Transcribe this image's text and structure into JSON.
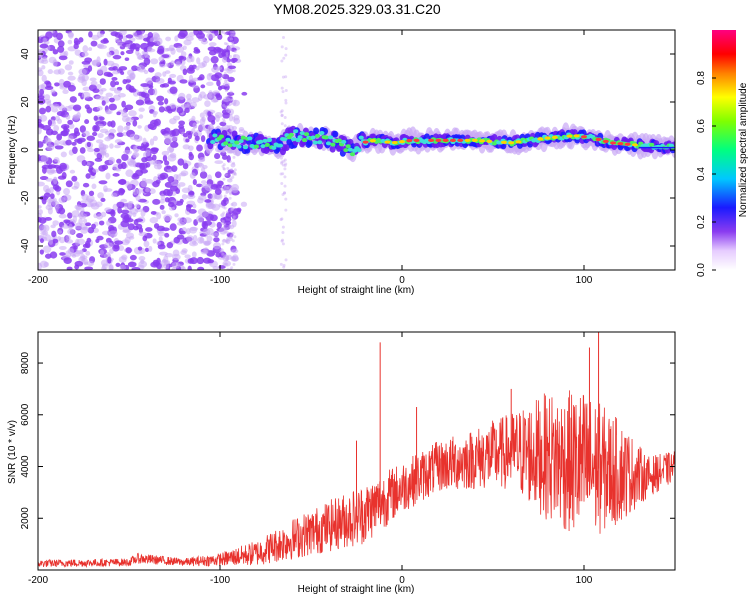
{
  "title": "YM08.2025.329.03.31.C20",
  "colors": {
    "snr_line": "#e8322d",
    "scatter_low": "#8a3cf0",
    "scatter_faint": "#c9a8f5",
    "band_center": "#3fe0d8",
    "band_core": "#ff3b3b"
  },
  "chart_data": [
    {
      "id": "spectrogram",
      "type": "heatmap",
      "title": "",
      "xlabel": "Height of straight line (km)",
      "ylabel": "Frequency (Hz)",
      "xlim": [
        -200,
        150
      ],
      "ylim": [
        -50,
        50
      ],
      "xticks": [
        -200,
        -100,
        0,
        100
      ],
      "yticks": [
        -40,
        -20,
        0,
        20,
        40
      ],
      "colorbar": {
        "label": "Normalized spectral amplitude",
        "range": [
          0,
          1
        ],
        "ticks": [
          0.0,
          0.2,
          0.4,
          0.6,
          0.8
        ]
      },
      "band_center_hz": [
        {
          "x": -105,
          "f": 5
        },
        {
          "x": -95,
          "f": 4
        },
        {
          "x": -85,
          "f": 3
        },
        {
          "x": -75,
          "f": 2
        },
        {
          "x": -68,
          "f": 1
        },
        {
          "x": -62,
          "f": 5
        },
        {
          "x": -55,
          "f": 6
        },
        {
          "x": -45,
          "f": 5
        },
        {
          "x": -35,
          "f": 3
        },
        {
          "x": -28,
          "f": 0
        },
        {
          "x": -22,
          "f": 3
        },
        {
          "x": -15,
          "f": 4
        },
        {
          "x": -5,
          "f": 3
        },
        {
          "x": 5,
          "f": 4
        },
        {
          "x": 20,
          "f": 4
        },
        {
          "x": 40,
          "f": 4
        },
        {
          "x": 60,
          "f": 3
        },
        {
          "x": 80,
          "f": 5
        },
        {
          "x": 95,
          "f": 6
        },
        {
          "x": 105,
          "f": 5
        },
        {
          "x": 115,
          "f": 3
        },
        {
          "x": 130,
          "f": 2
        },
        {
          "x": 150,
          "f": 1
        }
      ],
      "noise_region_km": [
        -200,
        -90
      ]
    },
    {
      "id": "snr",
      "type": "line",
      "title": "",
      "xlabel": "Height of straight line (km)",
      "ylabel": "SNR (10 * v/v)",
      "xlim": [
        -200,
        150
      ],
      "ylim": [
        0,
        9200
      ],
      "xticks": [
        -200,
        -100,
        0,
        100
      ],
      "yticks": [
        2000,
        4000,
        6000,
        8000
      ],
      "series": [
        {
          "name": "SNR",
          "envelope": [
            {
              "x": -200,
              "mean": 250,
              "spread": 150
            },
            {
              "x": -150,
              "mean": 300,
              "spread": 150
            },
            {
              "x": -145,
              "mean": 450,
              "spread": 200
            },
            {
              "x": -120,
              "mean": 300,
              "spread": 150
            },
            {
              "x": -100,
              "mean": 400,
              "spread": 250
            },
            {
              "x": -80,
              "mean": 650,
              "spread": 500
            },
            {
              "x": -60,
              "mean": 1200,
              "spread": 800
            },
            {
              "x": -40,
              "mean": 1700,
              "spread": 1000
            },
            {
              "x": -20,
              "mean": 2200,
              "spread": 1200
            },
            {
              "x": 0,
              "mean": 3200,
              "spread": 1000
            },
            {
              "x": 20,
              "mean": 4000,
              "spread": 1000
            },
            {
              "x": 40,
              "mean": 4300,
              "spread": 1200
            },
            {
              "x": 60,
              "mean": 4600,
              "spread": 1500
            },
            {
              "x": 80,
              "mean": 4400,
              "spread": 2500
            },
            {
              "x": 100,
              "mean": 4000,
              "spread": 3000
            },
            {
              "x": 120,
              "mean": 3800,
              "spread": 2000
            },
            {
              "x": 135,
              "mean": 3600,
              "spread": 800
            },
            {
              "x": 150,
              "mean": 4000,
              "spread": 600
            }
          ],
          "spikes": [
            {
              "x": -12,
              "y": 8800
            },
            {
              "x": -25,
              "y": 5000
            },
            {
              "x": 8,
              "y": 6300
            },
            {
              "x": 103,
              "y": 8600
            },
            {
              "x": 108,
              "y": 9200
            },
            {
              "x": 60,
              "y": 7000
            }
          ]
        }
      ]
    }
  ]
}
